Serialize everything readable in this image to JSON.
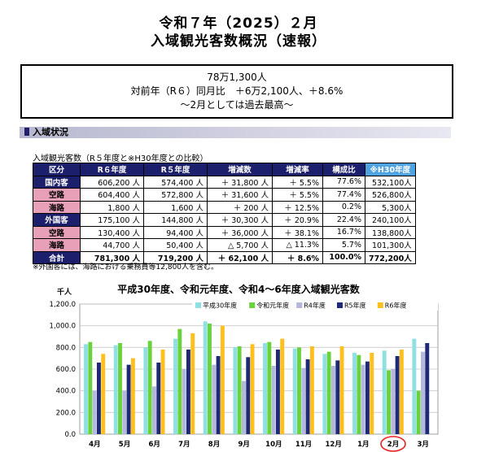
{
  "title": {
    "line1": "令和７年（2025）２月",
    "line2": "入域観光客数概況（速報）"
  },
  "summary": {
    "line1": "78万1,300人",
    "line2": "対前年（R６）同月比　＋6万2,100人、＋8.6%",
    "line3": "～2月としては過去最高～"
  },
  "section": {
    "heading": "入域状況"
  },
  "table": {
    "caption": "入域観光客数（R５年度と※H30年度との比較）",
    "headers": [
      "区分",
      "R６年度",
      "R５年度",
      "増減数",
      "増減率",
      "構成比",
      "※H30年度"
    ],
    "rows": [
      {
        "label": "国内客",
        "r6": "606,200 人",
        "r5": "574,400 人",
        "diff": "＋ 31,800 人",
        "rate": "＋ 5.5%",
        "share": "77.6%",
        "h30": "532,100人",
        "kind": "cat"
      },
      {
        "label": "空路",
        "r6": "604,400 人",
        "r5": "572,800 人",
        "diff": "＋ 31,600 人",
        "rate": "＋ 5.5%",
        "share": "77.4%",
        "h30": "526,800人",
        "kind": "sub"
      },
      {
        "label": "海路",
        "r6": "1,800 人",
        "r5": "1,600 人",
        "diff": "＋ 200 人",
        "rate": "＋ 12.5%",
        "share": "0.2%",
        "h30": "5,300人",
        "kind": "sub"
      },
      {
        "label": "外国客",
        "r6": "175,100 人",
        "r5": "144,800 人",
        "diff": "＋ 30,300 人",
        "rate": "＋ 20.9%",
        "share": "22.4%",
        "h30": "240,100人",
        "kind": "cat"
      },
      {
        "label": "空路",
        "r6": "130,400 人",
        "r5": "94,400 人",
        "diff": "＋ 36,000 人",
        "rate": "＋ 38.1%",
        "share": "16.7%",
        "h30": "138,800人",
        "kind": "sub"
      },
      {
        "label": "海路",
        "r6": "44,700 人",
        "r5": "50,400 人",
        "diff": "△ 5,700 人",
        "rate": "△ 11.3%",
        "share": "5.7%",
        "h30": "101,300人",
        "kind": "sub"
      },
      {
        "label": "合計",
        "r6": "781,300 人",
        "r5": "719,200 人",
        "diff": "＋ 62,100 人",
        "rate": "＋ 8.6%",
        "share": "100.0%",
        "h30": "772,200人",
        "kind": "total"
      }
    ],
    "note": "※外国客には、海路における乗務員等12,800人を含む。"
  },
  "colors": {
    "navy": "#1c1f6b",
    "pink": "#e7a0b8",
    "light_blue": "#4fa3e0",
    "highlight": "#e8211c"
  },
  "chart_data": {
    "type": "bar",
    "title": "平成30年度、令和元年度、令和4～6年度入域観光客数",
    "ylabel": "千人",
    "ylim": [
      0,
      1200
    ],
    "yticks": [
      "0.0",
      "200.0",
      "400.0",
      "600.0",
      "800.0",
      "1,000.0",
      "1,200.0"
    ],
    "legend_position": "top-right",
    "grid": true,
    "highlight_category": "2月",
    "categories": [
      "4月",
      "5月",
      "6月",
      "7月",
      "8月",
      "9月",
      "10月",
      "11月",
      "12月",
      "1月",
      "2月",
      "3月"
    ],
    "series": [
      {
        "name": "平成30年度",
        "color": "#8fe0e3",
        "values": [
          830,
          820,
          800,
          880,
          1040,
          800,
          840,
          790,
          740,
          750,
          770,
          880
        ]
      },
      {
        "name": "令和元年度",
        "color": "#6ad23c",
        "values": [
          850,
          840,
          860,
          970,
          1020,
          810,
          850,
          800,
          760,
          730,
          590,
          400
        ]
      },
      {
        "name": "R4年度",
        "color": "#b3b8dc",
        "values": [
          400,
          400,
          440,
          600,
          640,
          490,
          630,
          610,
          630,
          640,
          600,
          760
        ]
      },
      {
        "name": "R5年度",
        "color": "#1e2a78",
        "values": [
          660,
          640,
          660,
          780,
          720,
          710,
          780,
          690,
          680,
          670,
          720,
          840
        ]
      },
      {
        "name": "R6年度",
        "color": "#ffc01e",
        "values": [
          740,
          700,
          780,
          930,
          1000,
          830,
          880,
          810,
          810,
          750,
          780,
          null
        ]
      }
    ]
  }
}
